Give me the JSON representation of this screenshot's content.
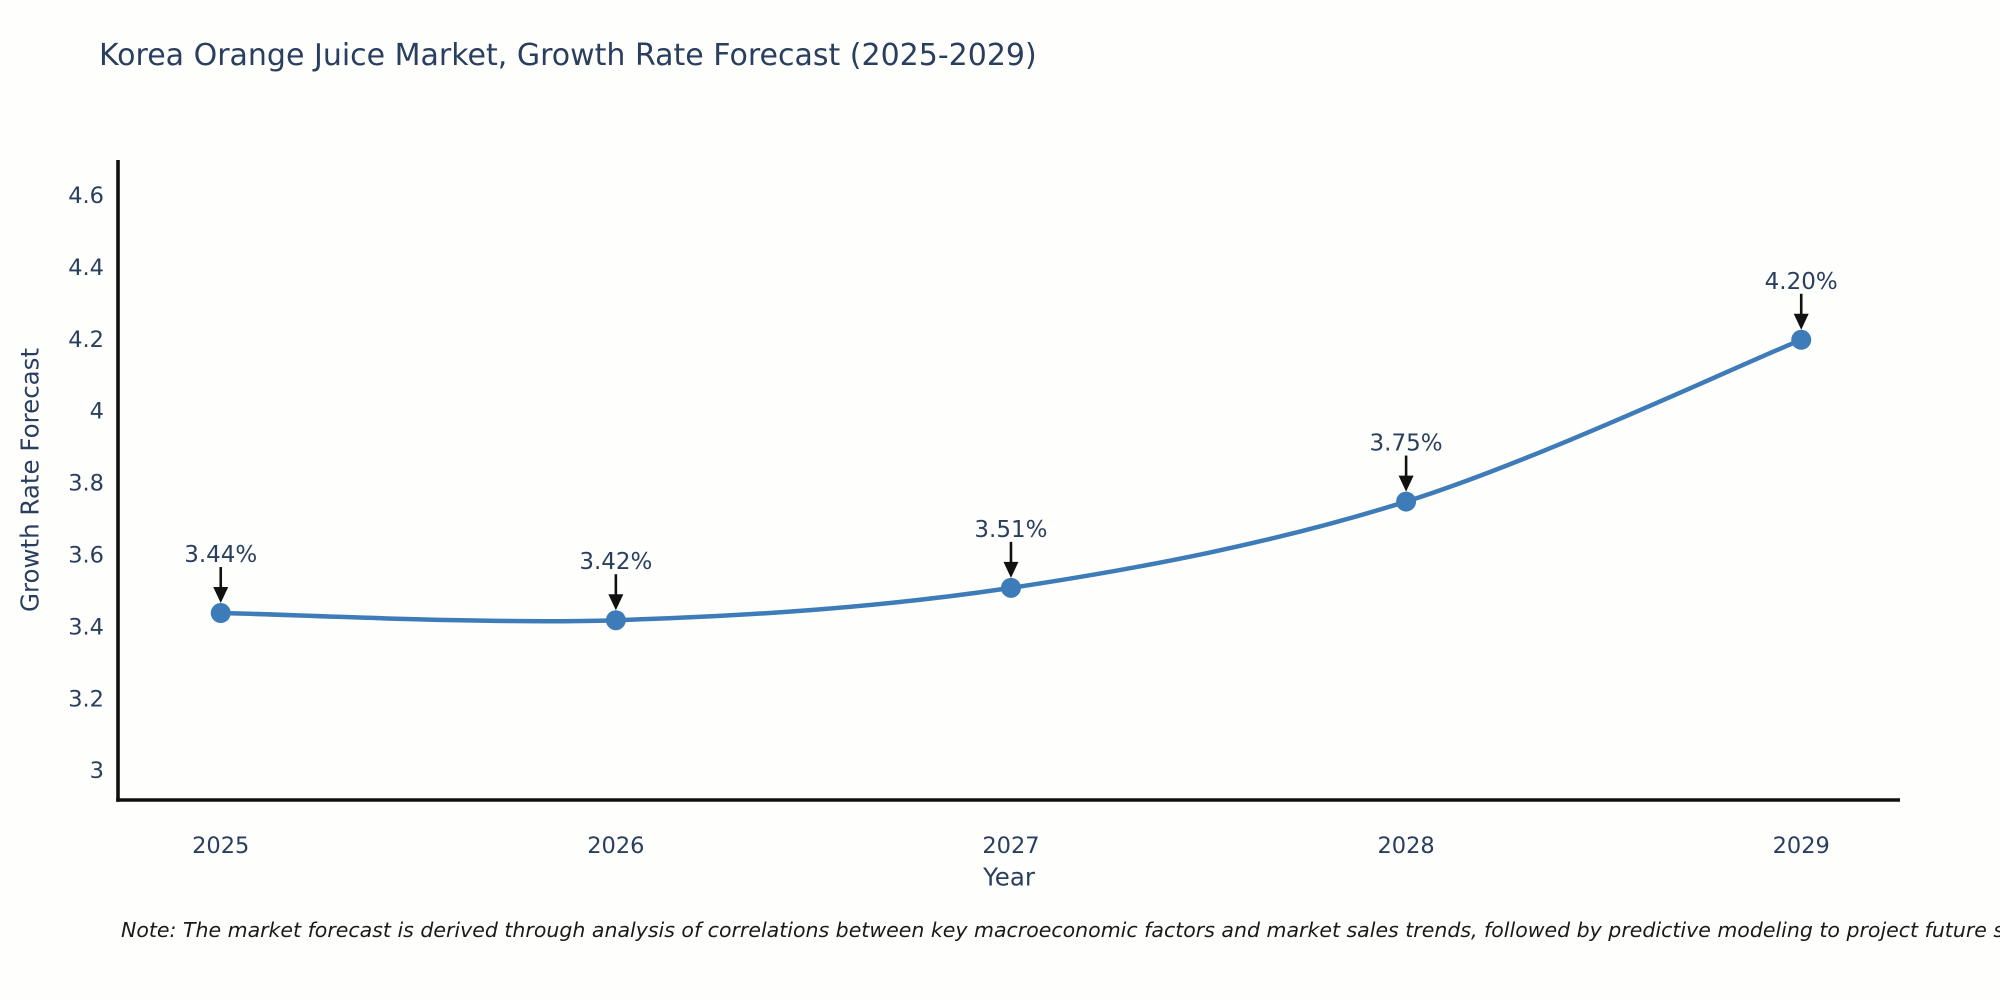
{
  "title": "Korea Orange Juice Market, Growth Rate Forecast (2025-2029)",
  "note": "Note: The market forecast is derived through analysis of correlations between key macroeconomic factors and market sales trends, followed by predictive modeling to project future sales",
  "chart_data": {
    "type": "line",
    "title": "Korea Orange Juice Market, Growth Rate Forecast (2025-2029)",
    "x": [
      2025,
      2026,
      2027,
      2028,
      2029
    ],
    "x_tick_labels": [
      "2025",
      "2026",
      "2027",
      "2028",
      "2029"
    ],
    "values": [
      3.44,
      3.42,
      3.51,
      3.75,
      4.2
    ],
    "point_labels": [
      "3.44%",
      "3.42%",
      "3.51%",
      "3.75%",
      "4.20%"
    ],
    "xlabel": "Year",
    "ylabel": "Growth Rate Forecast",
    "y_ticks": [
      3,
      3.2,
      3.4,
      3.6,
      3.8,
      4,
      4.2,
      4.4,
      4.6
    ],
    "y_tick_labels": [
      "3",
      "3.2",
      "3.4",
      "3.6",
      "3.8",
      "4",
      "4.2",
      "4.4",
      "4.6"
    ],
    "xlim": [
      2024.74,
      2029.25
    ],
    "ylim": [
      2.92,
      4.7
    ],
    "grid": false,
    "legend": false,
    "line_shape": "spline",
    "line_color": "#3d7cb8",
    "marker_color": "#3d7cb8",
    "axis_color": "#111111",
    "text_color": "#2a3f5f",
    "annotation_arrow_color": "#111111",
    "background_color": "#fefefc"
  }
}
